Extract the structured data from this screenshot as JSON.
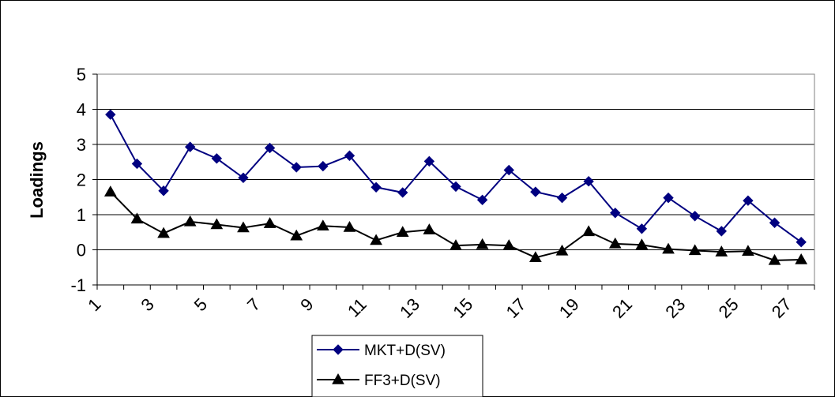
{
  "chart_data": {
    "type": "line",
    "title": "",
    "xlabel": "",
    "ylabel": "Loadings",
    "ylim": [
      -1,
      5
    ],
    "yticks": [
      -1,
      0,
      1,
      2,
      3,
      4,
      5
    ],
    "x": [
      1,
      2,
      3,
      4,
      5,
      6,
      7,
      8,
      9,
      10,
      11,
      12,
      13,
      14,
      15,
      16,
      17,
      18,
      19,
      20,
      21,
      22,
      23,
      24,
      25,
      26,
      27
    ],
    "xtick_labels": [
      "1",
      "3",
      "5",
      "7",
      "9",
      "11",
      "13",
      "15",
      "17",
      "19",
      "21",
      "23",
      "25",
      "27"
    ],
    "grid": true,
    "legend_position": "bottom",
    "series": [
      {
        "name": "MKT+D(SV)",
        "color": "#000080",
        "marker": "diamond",
        "values": [
          3.85,
          2.45,
          1.68,
          2.93,
          2.6,
          2.05,
          2.9,
          2.35,
          2.38,
          2.68,
          1.78,
          1.63,
          2.52,
          1.8,
          1.42,
          2.27,
          1.65,
          1.48,
          1.95,
          1.05,
          0.6,
          1.48,
          0.96,
          0.53,
          1.4,
          0.77,
          0.22
        ]
      },
      {
        "name": "FF3+D(SV)",
        "color": "#000000",
        "marker": "triangle",
        "values": [
          1.65,
          0.88,
          0.47,
          0.8,
          0.72,
          0.63,
          0.75,
          0.4,
          0.68,
          0.64,
          0.27,
          0.5,
          0.57,
          0.12,
          0.15,
          0.12,
          -0.22,
          -0.03,
          0.52,
          0.17,
          0.14,
          0.02,
          -0.02,
          -0.06,
          -0.04,
          -0.3,
          -0.28
        ]
      }
    ]
  }
}
